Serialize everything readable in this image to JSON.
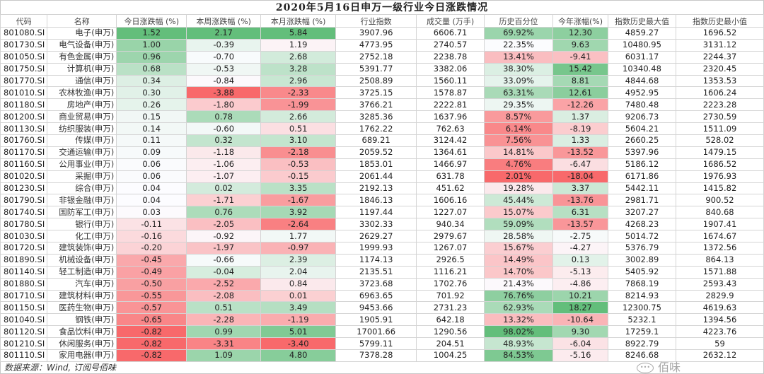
{
  "title": "2020年5月16日申万一级行业今日涨跌情况",
  "colors": {
    "positive": "#63BE7B",
    "negative": "#F8696B",
    "mid": "#FCFCFF"
  },
  "columns": [
    "代码",
    "名称",
    "今日涨跌幅 (%)",
    "本周涨跌幅 (%)",
    "本月涨跌幅 (%)",
    "行业指数",
    "成交量 (万手)",
    "历史百分位",
    "今年涨幅(%)",
    "指数历史最大值",
    "指数历史最小值"
  ],
  "heatmap_columns": [
    2,
    3,
    4,
    7,
    8
  ],
  "rows": [
    [
      "801080.SI",
      "电子(申万)",
      "1.52",
      "2.17",
      "5.84",
      "3907.96",
      "6606.71",
      "69.92%",
      "12.30",
      "4859.27",
      "1696.52"
    ],
    [
      "801730.SI",
      "电气设备(申万)",
      "1.00",
      "-0.39",
      "1.19",
      "4773.95",
      "2740.57",
      "22.35%",
      "9.63",
      "10480.95",
      "3131.12"
    ],
    [
      "801050.SI",
      "有色金属(申万)",
      "0.96",
      "-0.70",
      "2.68",
      "2752.18",
      "2238.78",
      "13.41%",
      "-9.41",
      "6031.17",
      "2244.37"
    ],
    [
      "801750.SI",
      "计算机(申万)",
      "0.68",
      "-0.53",
      "3.28",
      "5391.77",
      "3382.06",
      "38.30%",
      "15.42",
      "10340.48",
      "2320.45"
    ],
    [
      "801770.SI",
      "通信(申万)",
      "0.34",
      "-0.84",
      "2.96",
      "2508.89",
      "1560.11",
      "33.09%",
      "8.81",
      "4844.68",
      "1353.53"
    ],
    [
      "801010.SI",
      "农林牧渔(申万)",
      "0.30",
      "-3.88",
      "-2.33",
      "3725.15",
      "1578.87",
      "63.31%",
      "12.61",
      "4952.95",
      "1606.24"
    ],
    [
      "801180.SI",
      "房地产(申万)",
      "0.26",
      "-1.80",
      "-1.99",
      "3766.21",
      "2222.81",
      "29.35%",
      "-12.26",
      "7480.48",
      "2223.28"
    ],
    [
      "801200.SI",
      "商业贸易(申万)",
      "0.15",
      "0.78",
      "2.66",
      "3285.36",
      "1637.96",
      "8.57%",
      "1.37",
      "9206.73",
      "2730.59"
    ],
    [
      "801130.SI",
      "纺织服装(申万)",
      "0.14",
      "-0.60",
      "0.51",
      "1762.22",
      "762.63",
      "6.14%",
      "-8.19",
      "5604.21",
      "1511.09"
    ],
    [
      "801760.SI",
      "传媒(申万)",
      "0.11",
      "0.32",
      "3.10",
      "689.21",
      "3124.42",
      "7.56%",
      "1.33",
      "2660.25",
      "528.02"
    ],
    [
      "801170.SI",
      "交通运输(申万)",
      "0.09",
      "-1.18",
      "-2.18",
      "2059.52",
      "1364.61",
      "14.81%",
      "-13.52",
      "5397.96",
      "1479.15"
    ],
    [
      "801160.SI",
      "公用事业(申万)",
      "0.06",
      "-1.06",
      "-0.53",
      "1853.01",
      "1466.97",
      "4.76%",
      "-6.47",
      "5186.12",
      "1686.52"
    ],
    [
      "801020.SI",
      "采掘(申万)",
      "0.06",
      "-1.07",
      "-0.15",
      "2061.44",
      "631.78",
      "2.01%",
      "-18.04",
      "6171.86",
      "1976.93"
    ],
    [
      "801230.SI",
      "综合(申万)",
      "0.04",
      "0.02",
      "3.35",
      "2192.13",
      "451.62",
      "19.28%",
      "3.37",
      "5442.11",
      "1415.82"
    ],
    [
      "801790.SI",
      "非银金融(申万)",
      "0.04",
      "-1.71",
      "-1.67",
      "1846.13",
      "1606.16",
      "45.44%",
      "-13.76",
      "2981.71",
      "900.52"
    ],
    [
      "801740.SI",
      "国防军工(申万)",
      "0.03",
      "0.76",
      "3.92",
      "1197.44",
      "1227.07",
      "15.07%",
      "6.31",
      "3207.27",
      "840.68"
    ],
    [
      "801780.SI",
      "银行(申万)",
      "-0.11",
      "-2.05",
      "-2.64",
      "3302.33",
      "940.34",
      "59.09%",
      "-13.57",
      "4268.23",
      "1907.41"
    ],
    [
      "801030.SI",
      "化工(申万)",
      "-0.16",
      "-0.92",
      "1.77",
      "2629.27",
      "2979.67",
      "28.58%",
      "-2.75",
      "5014.72",
      "1674.67"
    ],
    [
      "801720.SI",
      "建筑装饰(申万)",
      "-0.20",
      "-1.97",
      "-0.97",
      "1999.93",
      "1267.07",
      "15.67%",
      "-4.27",
      "5376.79",
      "1372.56"
    ],
    [
      "801890.SI",
      "机械设备(申万)",
      "-0.45",
      "-0.66",
      "2.39",
      "1174.13",
      "2926.5",
      "14.49%",
      "0.13",
      "3002.89",
      "864.13"
    ],
    [
      "801140.SI",
      "轻工制造(申万)",
      "-0.49",
      "-0.04",
      "2.04",
      "2135.51",
      "1116.21",
      "14.70%",
      "-5.13",
      "5405.92",
      "1571.88"
    ],
    [
      "801880.SI",
      "汽车(申万)",
      "-0.50",
      "-2.52",
      "0.84",
      "3723.68",
      "1702.76",
      "21.43%",
      "-4.86",
      "7868.19",
      "2593.43"
    ],
    [
      "801710.SI",
      "建筑材料(申万)",
      "-0.55",
      "-2.08",
      "0.01",
      "6963.65",
      "701.92",
      "76.76%",
      "10.21",
      "8214.93",
      "2829.9"
    ],
    [
      "801150.SI",
      "医药生物(申万)",
      "-0.57",
      "0.51",
      "3.49",
      "9453.66",
      "2731.23",
      "62.93%",
      "18.27",
      "12300.75",
      "4619.63"
    ],
    [
      "801040.SI",
      "钢铁(申万)",
      "-0.65",
      "-2.28",
      "-1.19",
      "1905.91",
      "642.18",
      "13.32%",
      "-10.64",
      "5232.1",
      "1394.56"
    ],
    [
      "801120.SI",
      "食品饮料(申万)",
      "-0.82",
      "0.99",
      "5.01",
      "17001.66",
      "1290.56",
      "98.02%",
      "9.30",
      "17259.1",
      "4223.76"
    ],
    [
      "801210.SI",
      "休闲服务(申万)",
      "-0.82",
      "-3.31",
      "-3.40",
      "5799.11",
      "204.51",
      "48.93%",
      "-6.04",
      "8922.79",
      "59"
    ],
    [
      "801110.SI",
      "家用电器(申万)",
      "-0.82",
      "1.09",
      "4.80",
      "7378.28",
      "1004.25",
      "84.53%",
      "-5.16",
      "8246.68",
      "2632.12"
    ]
  ],
  "footer": "数据来源：Wind, 订阅号佰味",
  "watermark": {
    "icon": "wechat-icon",
    "text": "佰味"
  }
}
